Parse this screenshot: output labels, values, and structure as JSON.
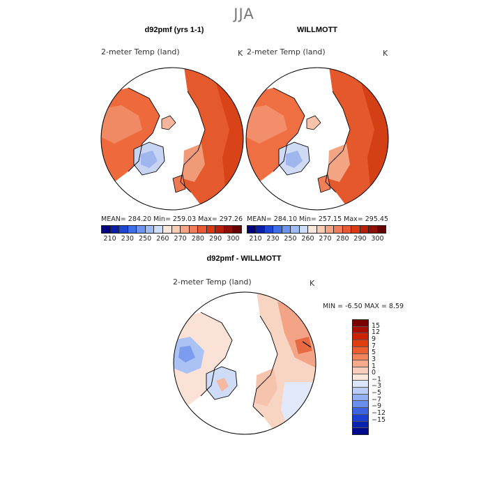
{
  "season": "JJA",
  "panels": [
    {
      "title": "d92pmf (yrs 1-1)",
      "variable": "2-meter Temp (land)",
      "unit": "K",
      "stats": "MEAN= 284.20   Min= 259.03   Max= 297.26"
    },
    {
      "title": "WILLMOTT",
      "variable": "2-meter Temp (land)",
      "unit": "K",
      "stats": "MEAN= 284.10   Min= 257.15   Max= 295.45"
    }
  ],
  "abs_colorbar": {
    "ticks": [
      "210",
      "230",
      "250",
      "260",
      "270",
      "280",
      "290",
      "300"
    ],
    "colors": [
      "#00007f",
      "#0a1ea8",
      "#1e46d2",
      "#3f6ee6",
      "#6c93f0",
      "#9fbaf5",
      "#cfdcf8",
      "#fbe7dc",
      "#f9cbb3",
      "#f5a583",
      "#f07e5a",
      "#e85a36",
      "#d93a16",
      "#b81f08",
      "#8e0f04",
      "#660000"
    ]
  },
  "diff_panel": {
    "title": "d92pmf - WILLMOTT",
    "variable": "2-meter Temp (land)",
    "unit": "K",
    "min_max": "MIN =    -6.50 MAX =    8.59"
  },
  "diff_colorbar": {
    "ticks": [
      "15",
      "12",
      "9",
      "7",
      "5",
      "3",
      "1",
      "0",
      "−1",
      "−3",
      "−5",
      "−7",
      "−9",
      "−12",
      "−15"
    ],
    "colors": [
      "#7a0000",
      "#a80d00",
      "#cc2200",
      "#e23d0e",
      "#ee5e30",
      "#f4835a",
      "#f7a98b",
      "#f9cdb9",
      "#fbe6dc",
      "#dce6f9",
      "#b9cdf6",
      "#92b0f2",
      "#6a8eec",
      "#3d63e0",
      "#1b3fd0",
      "#0a22b0",
      "#000a8a"
    ]
  }
}
